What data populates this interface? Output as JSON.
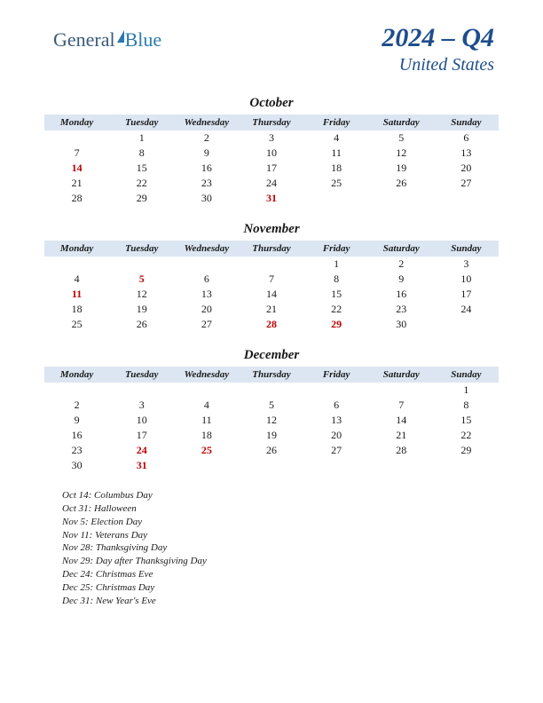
{
  "logo": {
    "part1": "General",
    "part2": "Blue"
  },
  "header": {
    "quarter": "2024 – Q4",
    "country": "United States"
  },
  "colors": {
    "header_text": "#1e4e8c",
    "th_bg": "#dce6f2",
    "holiday_text": "#c00000",
    "body_text": "#1a1a1a",
    "logo_general": "#3a5a7a",
    "logo_blue": "#2a7aae"
  },
  "daynames": [
    "Monday",
    "Tuesday",
    "Wednesday",
    "Thursday",
    "Friday",
    "Saturday",
    "Sunday"
  ],
  "months": [
    {
      "name": "October",
      "weeks": [
        [
          null,
          1,
          2,
          3,
          4,
          5,
          6
        ],
        [
          7,
          8,
          9,
          10,
          11,
          12,
          13
        ],
        [
          14,
          15,
          16,
          17,
          18,
          19,
          20
        ],
        [
          21,
          22,
          23,
          24,
          25,
          26,
          27
        ],
        [
          28,
          29,
          30,
          31,
          null,
          null,
          null
        ]
      ],
      "holidays": [
        14,
        31
      ]
    },
    {
      "name": "November",
      "weeks": [
        [
          null,
          null,
          null,
          null,
          1,
          2,
          3
        ],
        [
          4,
          5,
          6,
          7,
          8,
          9,
          10
        ],
        [
          11,
          12,
          13,
          14,
          15,
          16,
          17
        ],
        [
          18,
          19,
          20,
          21,
          22,
          23,
          24
        ],
        [
          25,
          26,
          27,
          28,
          29,
          30,
          null
        ]
      ],
      "holidays": [
        5,
        11,
        28,
        29
      ]
    },
    {
      "name": "December",
      "weeks": [
        [
          null,
          null,
          null,
          null,
          null,
          null,
          1
        ],
        [
          2,
          3,
          4,
          5,
          6,
          7,
          8
        ],
        [
          9,
          10,
          11,
          12,
          13,
          14,
          15
        ],
        [
          16,
          17,
          18,
          19,
          20,
          21,
          22
        ],
        [
          23,
          24,
          25,
          26,
          27,
          28,
          29
        ],
        [
          30,
          31,
          null,
          null,
          null,
          null,
          null
        ]
      ],
      "holidays": [
        24,
        25,
        31
      ]
    }
  ],
  "holiday_list": [
    "Oct 14: Columbus Day",
    "Oct 31: Halloween",
    "Nov 5: Election Day",
    "Nov 11: Veterans Day",
    "Nov 28: Thanksgiving Day",
    "Nov 29: Day after Thanksgiving Day",
    "Dec 24: Christmas Eve",
    "Dec 25: Christmas Day",
    "Dec 31: New Year's Eve"
  ]
}
